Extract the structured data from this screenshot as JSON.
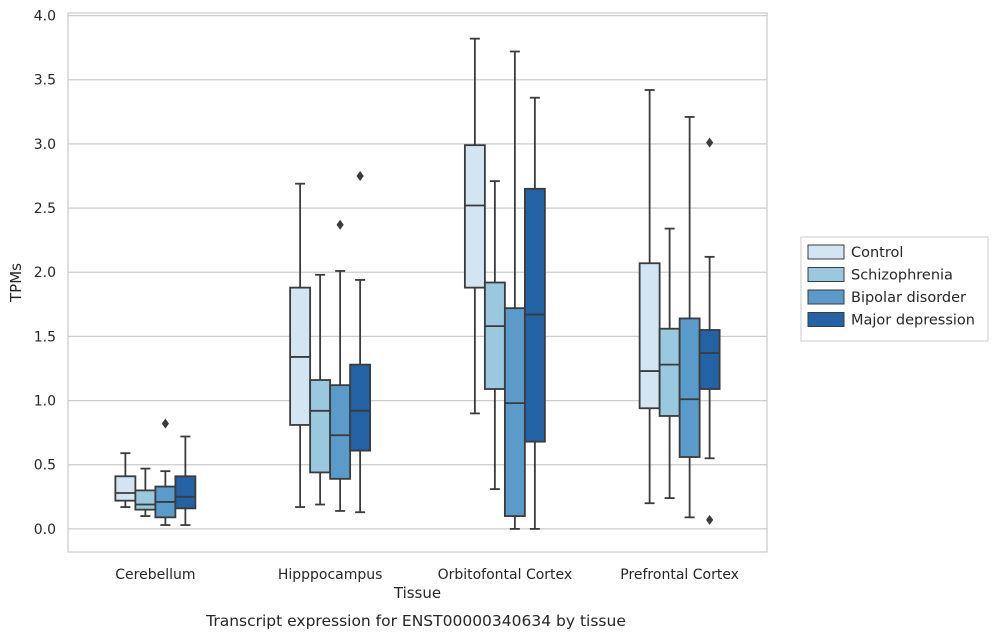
{
  "chart_data": {
    "type": "box",
    "title": "",
    "caption": "Transcript expression for ENST00000340634 by tissue",
    "xlabel": "Tissue",
    "ylabel": "TPMs",
    "ylim": [
      -0.18,
      4.02
    ],
    "yticks": [
      0.0,
      0.5,
      1.0,
      1.5,
      2.0,
      2.5,
      3.0,
      3.5,
      4.0
    ],
    "ytick_labels": [
      "0.0",
      "0.5",
      "1.0",
      "1.5",
      "2.0",
      "2.5",
      "3.0",
      "3.5",
      "4.0"
    ],
    "grid": true,
    "legend_position": "right",
    "categories": [
      "Cerebellum",
      "Hipppocampus",
      "Orbitofontal Cortex",
      "Prefrontal Cortex"
    ],
    "series": [
      {
        "name": "Control",
        "color": "#d3e4f3",
        "boxes": [
          {
            "whisker_low": 0.17,
            "q1": 0.22,
            "median": 0.28,
            "q3": 0.41,
            "whisker_high": 0.59,
            "outliers": []
          },
          {
            "whisker_low": 0.17,
            "q1": 0.81,
            "median": 1.34,
            "q3": 1.88,
            "whisker_high": 2.69,
            "outliers": []
          },
          {
            "whisker_low": 0.9,
            "q1": 1.88,
            "median": 2.52,
            "q3": 2.99,
            "whisker_high": 3.82,
            "outliers": []
          },
          {
            "whisker_low": 0.2,
            "q1": 0.94,
            "median": 1.23,
            "q3": 2.07,
            "whisker_high": 3.42,
            "outliers": []
          }
        ]
      },
      {
        "name": "Schizophrenia",
        "color": "#9ac8df",
        "boxes": [
          {
            "whisker_low": 0.1,
            "q1": 0.15,
            "median": 0.19,
            "q3": 0.3,
            "whisker_high": 0.47,
            "outliers": []
          },
          {
            "whisker_low": 0.19,
            "q1": 0.44,
            "median": 0.92,
            "q3": 1.16,
            "whisker_high": 1.98,
            "outliers": []
          },
          {
            "whisker_low": 0.31,
            "q1": 1.09,
            "median": 1.58,
            "q3": 1.92,
            "whisker_high": 2.71,
            "outliers": []
          },
          {
            "whisker_low": 0.24,
            "q1": 0.88,
            "median": 1.28,
            "q3": 1.56,
            "whisker_high": 2.34,
            "outliers": []
          }
        ]
      },
      {
        "name": "Bipolar disorder",
        "color": "#5a9bc9",
        "boxes": [
          {
            "whisker_low": 0.03,
            "q1": 0.09,
            "median": 0.21,
            "q3": 0.33,
            "whisker_high": 0.45,
            "outliers": [
              0.82
            ]
          },
          {
            "whisker_low": 0.14,
            "q1": 0.39,
            "median": 0.73,
            "q3": 1.12,
            "whisker_high": 2.01,
            "outliers": [
              2.37
            ]
          },
          {
            "whisker_low": 0.0,
            "q1": 0.1,
            "median": 0.98,
            "q3": 1.72,
            "whisker_high": 3.72,
            "outliers": []
          },
          {
            "whisker_low": 0.09,
            "q1": 0.56,
            "median": 1.01,
            "q3": 1.64,
            "whisker_high": 3.21,
            "outliers": []
          }
        ]
      },
      {
        "name": "Major depression",
        "color": "#2462a6",
        "boxes": [
          {
            "whisker_low": 0.03,
            "q1": 0.16,
            "median": 0.25,
            "q3": 0.41,
            "whisker_high": 0.72,
            "outliers": []
          },
          {
            "whisker_low": 0.13,
            "q1": 0.61,
            "median": 0.92,
            "q3": 1.28,
            "whisker_high": 1.94,
            "outliers": [
              2.75
            ]
          },
          {
            "whisker_low": 0.0,
            "q1": 0.68,
            "median": 1.67,
            "q3": 2.65,
            "whisker_high": 3.36,
            "outliers": []
          },
          {
            "whisker_low": 0.55,
            "q1": 1.09,
            "median": 1.37,
            "q3": 1.55,
            "whisker_high": 2.12,
            "outliers": [
              3.01,
              0.07
            ]
          }
        ]
      }
    ]
  }
}
